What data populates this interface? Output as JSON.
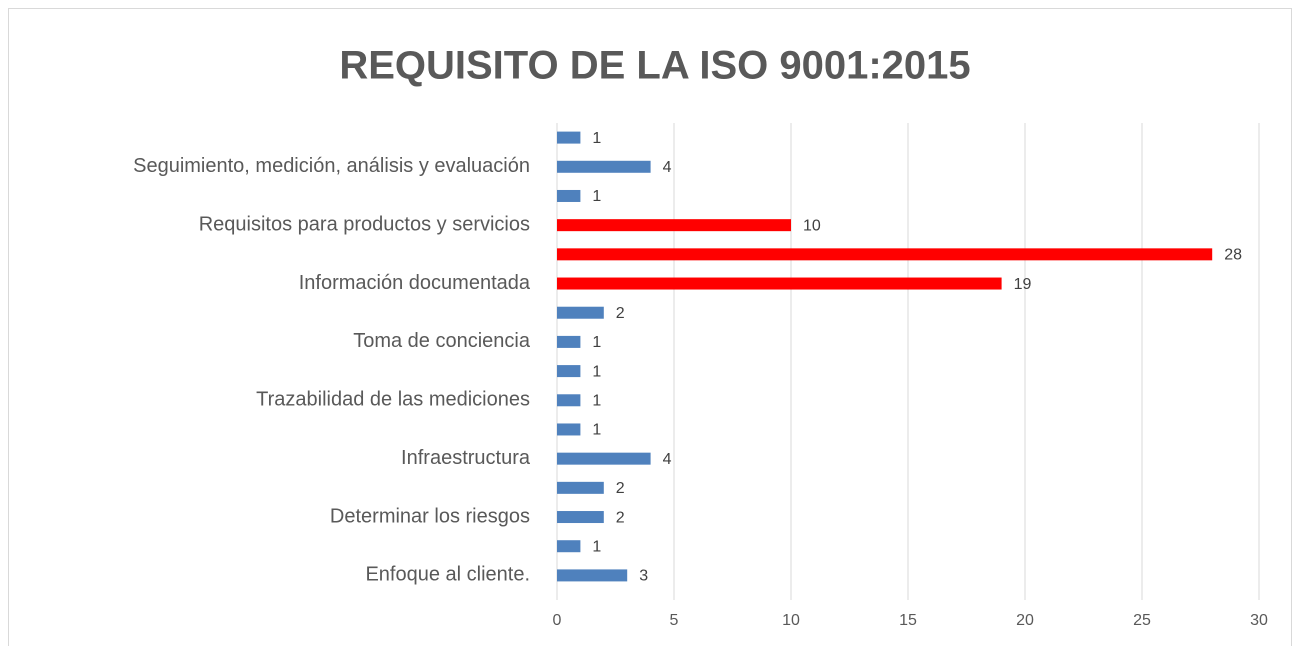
{
  "chart_data": {
    "type": "barh",
    "title": "REQUISITO DE LA ISO 9001:2015",
    "categories": [
      "Enfoque al cliente.",
      null,
      "Determinar los riesgos",
      null,
      "Infraestructura",
      null,
      "Trazabilidad de las mediciones",
      null,
      "Toma de conciencia",
      null,
      "Información documentada",
      null,
      "Requisitos para productos y servicios",
      null,
      "Seguimiento, medición, análisis y evaluación",
      null
    ],
    "values": [
      3,
      1,
      2,
      2,
      4,
      1,
      1,
      1,
      1,
      2,
      19,
      28,
      10,
      1,
      4,
      1
    ],
    "colors": [
      "#4f81bd",
      "#4f81bd",
      "#4f81bd",
      "#4f81bd",
      "#4f81bd",
      "#4f81bd",
      "#4f81bd",
      "#4f81bd",
      "#4f81bd",
      "#4f81bd",
      "#ff0000",
      "#ff0000",
      "#ff0000",
      "#4f81bd",
      "#4f81bd",
      "#4f81bd"
    ],
    "xlim": [
      0,
      30
    ],
    "xticks": [
      0,
      5,
      10,
      15,
      20,
      25,
      30
    ],
    "grid": true
  }
}
